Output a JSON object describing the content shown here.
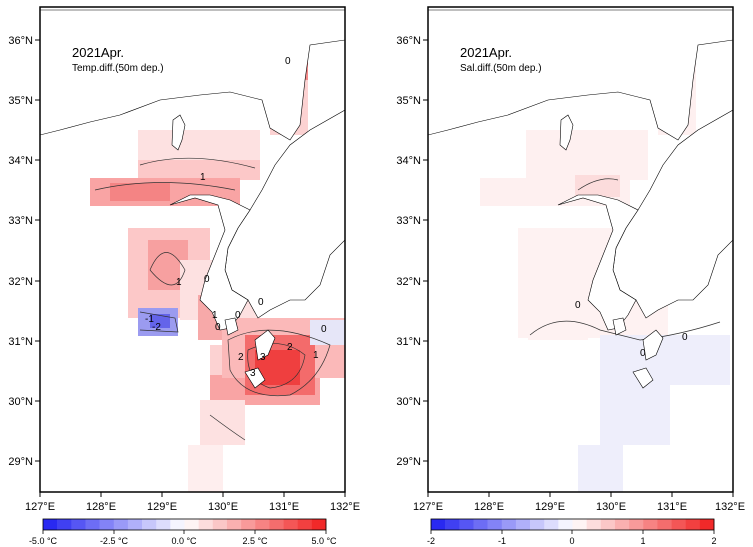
{
  "maps": [
    {
      "id": "temp",
      "title": "2021Apr.",
      "subtitle": "Temp.diff.(50m dep.)",
      "lon_ticks": [
        "127°E",
        "128°E",
        "129°E",
        "130°E",
        "131°E",
        "132°E"
      ],
      "lat_ticks": [
        "36°N",
        "35°N",
        "34°N",
        "33°N",
        "32°N",
        "31°N",
        "30°N",
        "29°N"
      ],
      "contour_labels": [
        "0",
        "1",
        "1",
        "0",
        "1",
        "0",
        "0",
        "-1",
        "-2",
        "0",
        "2",
        "3",
        "2",
        "1",
        "0",
        "3"
      ],
      "colorbar": {
        "min": -5.0,
        "max": 5.0,
        "tick_labels": [
          "-5.0 °C",
          "-2.5 °C",
          "0.0 °C",
          "2.5 °C",
          "5.0 °C"
        ]
      }
    },
    {
      "id": "sal",
      "title": "2021Apr.",
      "subtitle": "Sal.diff.(50m dep.)",
      "lon_ticks": [
        "127°E",
        "128°E",
        "129°E",
        "130°E",
        "131°E",
        "132°E"
      ],
      "lat_ticks": [
        "36°N",
        "35°N",
        "34°N",
        "33°N",
        "32°N",
        "31°N",
        "30°N",
        "29°N"
      ],
      "contour_labels": [
        "0",
        "0",
        "0"
      ],
      "colorbar": {
        "min": -2,
        "max": 2,
        "tick_labels": [
          "-2",
          "-1",
          "0",
          "1",
          "2"
        ]
      }
    }
  ],
  "colors": {
    "negative_max": "#1e1ef0",
    "neutral": "#ffffff",
    "positive_max": "#f01e1e",
    "coastline": "#000000"
  }
}
